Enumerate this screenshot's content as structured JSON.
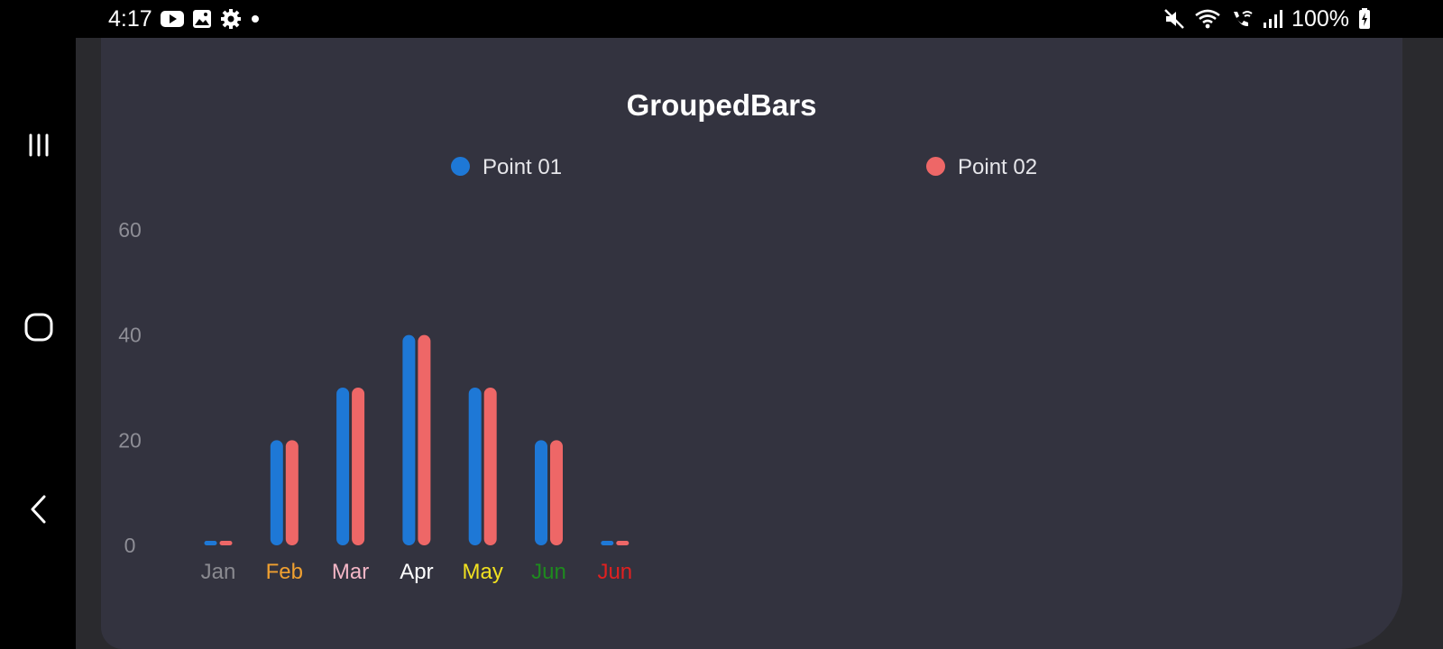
{
  "status_bar": {
    "time": "4:17",
    "left_icons": [
      "youtube-icon",
      "gallery-icon",
      "settings-icon",
      "notification-dot-icon"
    ],
    "right_icons": [
      "mute-icon",
      "wifi-icon",
      "wifi-calling-icon",
      "signal-icon",
      "battery-charging-icon"
    ],
    "battery": "100%"
  },
  "nav_bar": {
    "buttons": [
      "recents-icon",
      "home-icon",
      "back-icon"
    ]
  },
  "colors": {
    "background": "#000000",
    "card": "#33333f",
    "series_1": "#1e78d6",
    "series_2": "#ee6767",
    "axis_text": "#8e8e96"
  },
  "chart_data": {
    "type": "bar",
    "title": "GroupedBars",
    "categories": [
      "Jan",
      "Feb",
      "Mar",
      "Apr",
      "May",
      "Jun",
      "Jun"
    ],
    "category_colors": [
      "#8a8a90",
      "#f0a030",
      "#f4b6c6",
      "#ffffff",
      "#f0e020",
      "#1e8a1e",
      "#e02020"
    ],
    "series": [
      {
        "name": "Point 01",
        "color": "#1e78d6",
        "values": [
          0,
          20,
          30,
          40,
          30,
          20,
          0
        ]
      },
      {
        "name": "Point 02",
        "color": "#ee6767",
        "values": [
          0,
          20,
          30,
          40,
          30,
          20,
          0
        ]
      }
    ],
    "ylim": [
      0,
      60
    ],
    "yticks": [
      "0",
      "20",
      "40",
      "60"
    ],
    "grid": false,
    "legend_position": "top"
  }
}
